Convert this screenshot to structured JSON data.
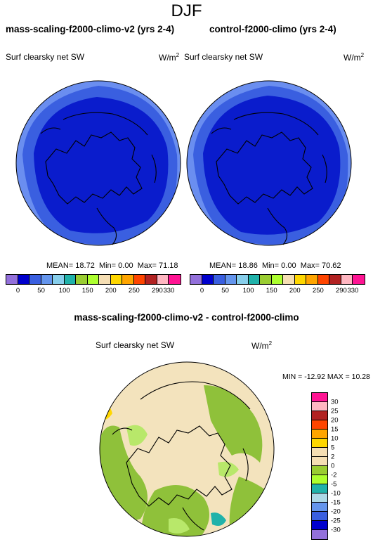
{
  "season": "DJF",
  "left_panel": {
    "title": "mass-scaling-f2000-climo-v2 (yrs 2-4)",
    "variable": "Surf clearsky net SW",
    "units": "W/m",
    "units_exp": "2",
    "mean_label": "MEAN=",
    "mean": "18.72",
    "min_label": "Min=",
    "min": "0.00",
    "max_label": "Max=",
    "max": "71.18"
  },
  "right_panel": {
    "title": "control-f2000-climo (yrs 2-4)",
    "variable": "Surf clearsky net SW",
    "units": "W/m",
    "units_exp": "2",
    "mean_label": "MEAN=",
    "mean": "18.86",
    "min_label": "Min=",
    "min": "0.00",
    "max_label": "Max=",
    "max": "70.62"
  },
  "field_colorbar": {
    "colors": [
      "#9370db",
      "#0000cd",
      "#3a5fe0",
      "#6495ed",
      "#87ceeb",
      "#20b2aa",
      "#9acd32",
      "#adff2f",
      "#f5deb3",
      "#ffd700",
      "#ffa500",
      "#ff4500",
      "#b22222",
      "#ffb6c1",
      "#ff1493"
    ],
    "labels": [
      "0",
      "50",
      "100",
      "150",
      "200",
      "250",
      "290",
      "330"
    ]
  },
  "diff_panel": {
    "title": "mass-scaling-f2000-climo-v2 - control-f2000-climo",
    "variable": "Surf clearsky net SW",
    "units": "W/m",
    "units_exp": "2",
    "stats": "MIN = -12.92 MAX =  10.28"
  },
  "diff_colorbar": {
    "colors": [
      "#ff1493",
      "#ffb6c1",
      "#b22222",
      "#ff4500",
      "#ffa500",
      "#ffd700",
      "#f5deb3",
      "#f5deb3",
      "#9acd32",
      "#adff2f",
      "#20b2aa",
      "#add8e6",
      "#6495ed",
      "#3a5fe0",
      "#0000cd",
      "#9370db"
    ],
    "labels": [
      "30",
      "25",
      "20",
      "15",
      "10",
      "5",
      "2",
      "0",
      "-2",
      "-5",
      "-10",
      "-15",
      "-20",
      "-25",
      "-30"
    ]
  },
  "map_colors": {
    "outer_ring": "#6a8ef0",
    "inner_ring": "#3a5fe0",
    "core": "#0a1ccc",
    "diff_base": "#f3e3bd",
    "diff_green": "#8fc13a",
    "diff_light_green": "#b8e86a",
    "diff_teal": "#20b2aa",
    "coast": "#000000"
  }
}
